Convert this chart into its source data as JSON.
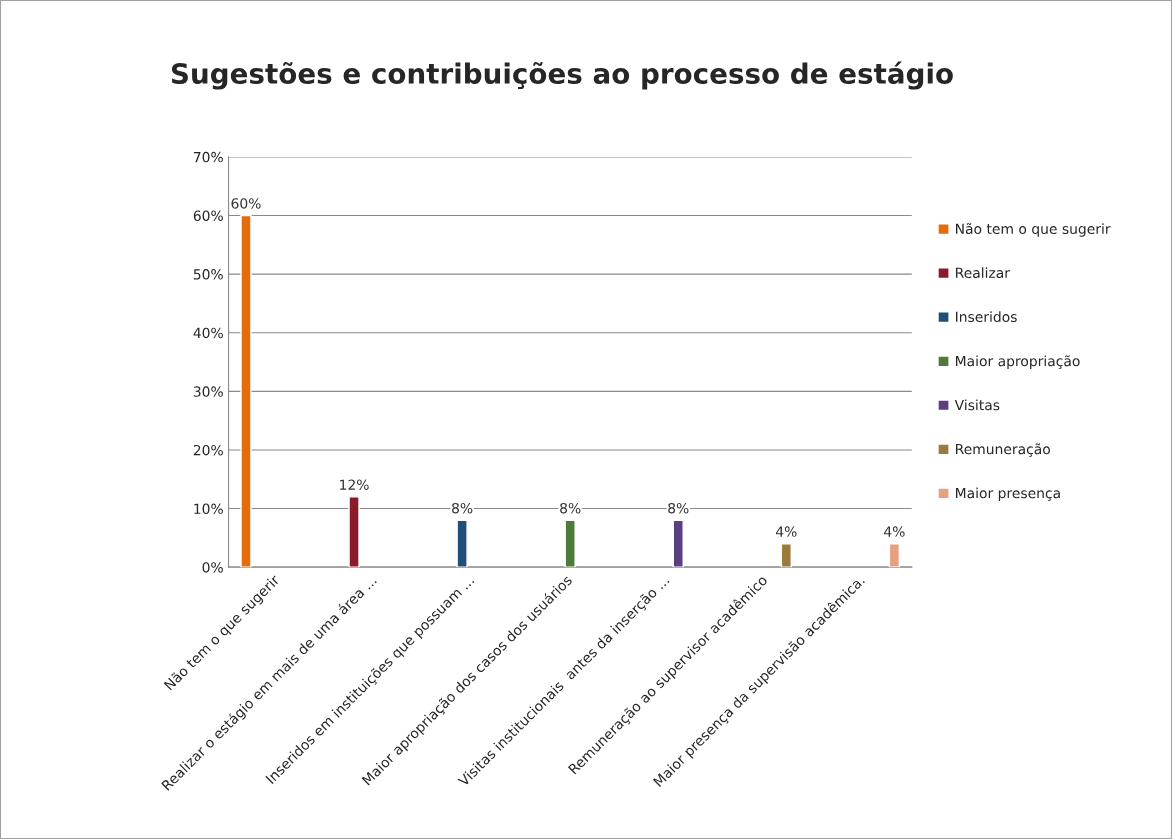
{
  "chart_data": {
    "type": "bar",
    "title": "Sugestões e contribuições ao processo de estágio",
    "categories": [
      "Não tem o que sugerir",
      "Realizar o estágio em mais de uma área ...",
      "Inseridos em instituições que possuam ...",
      "Maior apropriação dos casos dos usuários",
      "Visitas institucionais  antes da inserção ...",
      "Remuneração ao supervisor acadêmico",
      "Maior presença da supervisão acadêmica."
    ],
    "series": [
      {
        "name": "Não tem o que sugerir",
        "color": "#e46c0a",
        "values": [
          60,
          null,
          null,
          null,
          null,
          null,
          null
        ],
        "value_labels": [
          "60%",
          null,
          null,
          null,
          null,
          null,
          null
        ]
      },
      {
        "name": "Realizar",
        "color": "#8b1a2b",
        "values": [
          null,
          12,
          null,
          null,
          null,
          null,
          null
        ],
        "value_labels": [
          null,
          "12%",
          null,
          null,
          null,
          null,
          null
        ]
      },
      {
        "name": "Inseridos",
        "color": "#1f4e79",
        "values": [
          null,
          null,
          8,
          null,
          null,
          null,
          null
        ],
        "value_labels": [
          null,
          null,
          "8%",
          null,
          null,
          null,
          null
        ]
      },
      {
        "name": "Maior apropriação",
        "color": "#4e7a3a",
        "values": [
          null,
          null,
          null,
          8,
          null,
          null,
          null
        ],
        "value_labels": [
          null,
          null,
          null,
          "8%",
          null,
          null,
          null
        ]
      },
      {
        "name": "Visitas",
        "color": "#5b4080",
        "values": [
          null,
          null,
          null,
          null,
          8,
          null,
          null
        ],
        "value_labels": [
          null,
          null,
          null,
          null,
          "8%",
          null,
          null
        ]
      },
      {
        "name": "Remuneração",
        "color": "#9c7a3c",
        "values": [
          null,
          null,
          null,
          null,
          null,
          4,
          null
        ],
        "value_labels": [
          null,
          null,
          null,
          null,
          null,
          "4%",
          null
        ]
      },
      {
        "name": "Maior presença",
        "color": "#e8a080",
        "values": [
          null,
          null,
          null,
          null,
          null,
          null,
          4
        ],
        "value_labels": [
          null,
          null,
          null,
          null,
          null,
          null,
          "4%"
        ]
      }
    ],
    "ylim": [
      0,
      70
    ],
    "yticks": [
      {
        "value": 0,
        "label": "0%"
      },
      {
        "value": 10,
        "label": "10%"
      },
      {
        "value": 20,
        "label": "20%"
      },
      {
        "value": 30,
        "label": "30%"
      },
      {
        "value": 40,
        "label": "40%"
      },
      {
        "value": 50,
        "label": "50%"
      },
      {
        "value": 60,
        "label": "60%"
      },
      {
        "value": 70,
        "label": "70%"
      }
    ],
    "grid": "y",
    "legend": "right"
  }
}
